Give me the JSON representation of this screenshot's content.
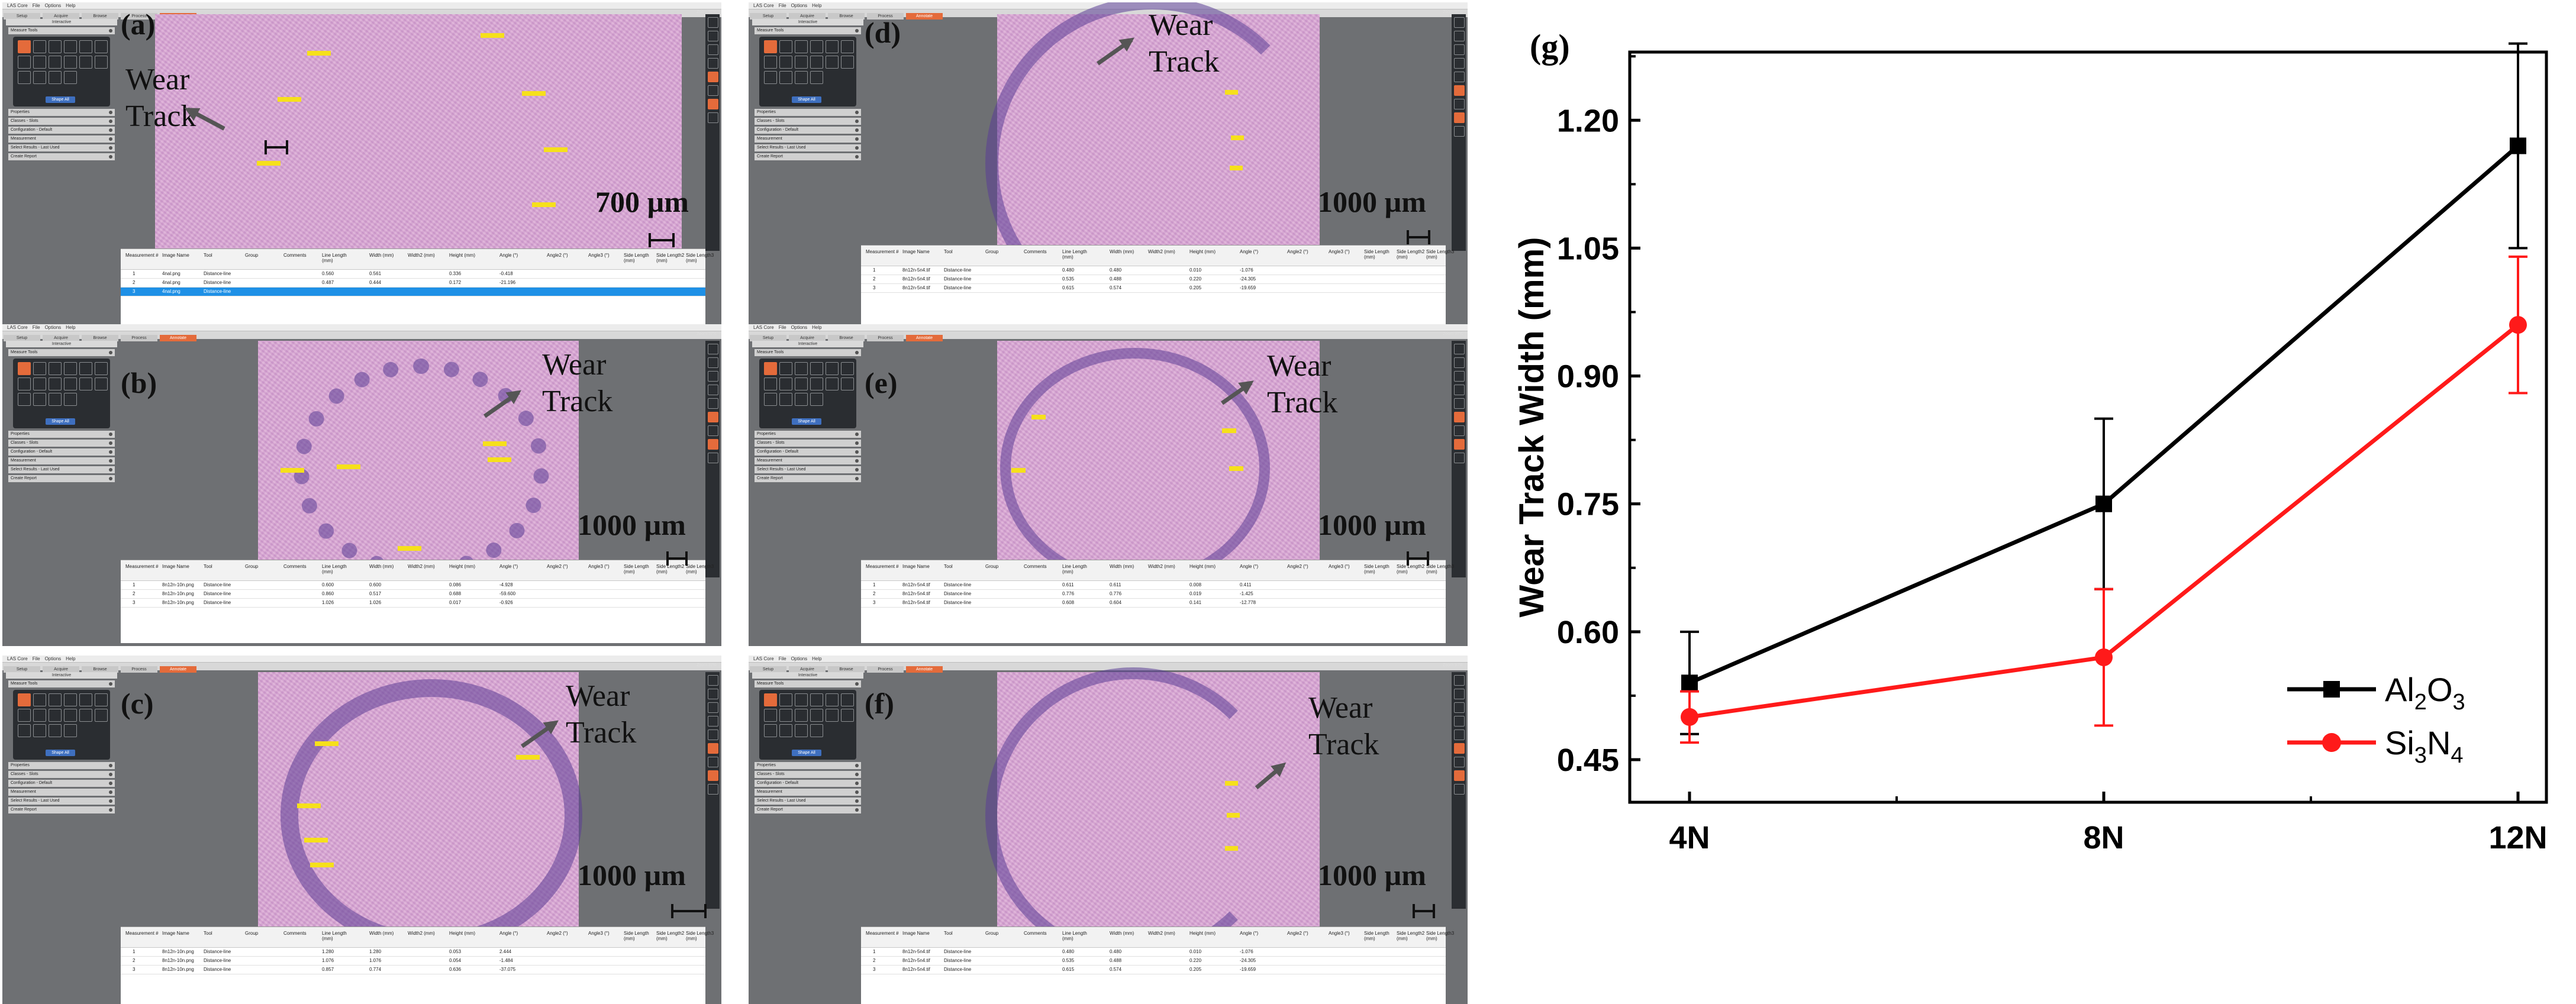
{
  "software": {
    "menu": [
      "LAS Core",
      "File",
      "Options",
      "Help"
    ],
    "tabs": [
      "Setup",
      "Acquire",
      "Browse",
      "Process",
      "Annotate"
    ],
    "active_tab": "Annotate",
    "zoom": "Zoom 37%",
    "left_panel": {
      "header": "Interactive",
      "tools_label": "Measure Tools",
      "shape_button": "Shape All",
      "rows": [
        "Properties",
        "Classes - Slots",
        "Configuration - Default",
        "Measurement",
        "Select Results - Last Used",
        "Create Report"
      ]
    },
    "table_headers": [
      "Measurement #",
      "Image Name",
      "Tool",
      "Group",
      "Comments",
      "Line Length (mm)",
      "Width (mm)",
      "Width2 (mm)",
      "Height (mm)",
      "Angle (°)",
      "Angle2 (°)",
      "Angle3 (°)",
      "Side Length (mm)",
      "Side Length2 (mm)",
      "Side Length3 (mm)"
    ]
  },
  "panels": [
    {
      "id": "a",
      "label": "(a)",
      "annotation": [
        "Wear",
        "Track"
      ],
      "scale_text": "700 µm",
      "rows": [
        {
          "n": "1",
          "image": "4nal.png",
          "tool": "Distance-line",
          "len": "0.560",
          "w": "0.561",
          "h": "0.336",
          "ang": "-0.418"
        },
        {
          "n": "2",
          "image": "4nal.png",
          "tool": "Distance-line",
          "len": "0.487",
          "w": "0.444",
          "h": "0.172",
          "ang": "-21.196"
        },
        {
          "n": "3",
          "image": "4nal.png",
          "tool": "Distance-line",
          "len": "",
          "w": "",
          "h": "",
          "ang": ""
        }
      ]
    },
    {
      "id": "b",
      "label": "(b)",
      "annotation": [
        "Wear",
        "Track"
      ],
      "scale_text": "1000 µm",
      "rows": [
        {
          "n": "1",
          "image": "8n12n-10n.png",
          "tool": "Distance-line",
          "len": "0.600",
          "w": "0.600",
          "h": "0.086",
          "ang": "-4.928"
        },
        {
          "n": "2",
          "image": "8n12n-10n.png",
          "tool": "Distance-line",
          "len": "0.860",
          "w": "0.517",
          "h": "0.688",
          "ang": "-59.600"
        },
        {
          "n": "3",
          "image": "8n12n-10n.png",
          "tool": "Distance-line",
          "len": "1.026",
          "w": "1.026",
          "h": "0.017",
          "ang": "-0.926"
        }
      ]
    },
    {
      "id": "c",
      "label": "(c)",
      "annotation": [
        "Wear",
        "Track"
      ],
      "scale_text": "1000 µm",
      "rows": [
        {
          "n": "1",
          "image": "8n12n-10n.png",
          "tool": "Distance-line",
          "len": "1.280",
          "w": "1.280",
          "h": "0.053",
          "ang": "2.444"
        },
        {
          "n": "2",
          "image": "8n12n-10n.png",
          "tool": "Distance-line",
          "len": "1.076",
          "w": "1.076",
          "h": "0.054",
          "ang": "-1.484"
        },
        {
          "n": "3",
          "image": "8n12n-10n.png",
          "tool": "Distance-line",
          "len": "0.857",
          "w": "0.774",
          "h": "0.636",
          "ang": "-37.075"
        }
      ]
    },
    {
      "id": "d",
      "label": "(d)",
      "annotation": [
        "Wear",
        "Track"
      ],
      "scale_text": "1000 µm",
      "rows": [
        {
          "n": "1",
          "image": "8n12n-5n4.tif",
          "tool": "Distance-line",
          "len": "0.480",
          "w": "0.480",
          "h": "0.010",
          "ang": "-1.076"
        },
        {
          "n": "2",
          "image": "8n12n-5n4.tif",
          "tool": "Distance-line",
          "len": "0.535",
          "w": "0.488",
          "h": "0.220",
          "ang": "-24.305"
        },
        {
          "n": "3",
          "image": "8n12n-5n4.tif",
          "tool": "Distance-line",
          "len": "0.615",
          "w": "0.574",
          "h": "0.205",
          "ang": "-19.659"
        }
      ]
    },
    {
      "id": "e",
      "label": "(e)",
      "annotation": [
        "Wear",
        "Track"
      ],
      "scale_text": "1000 µm",
      "rows": [
        {
          "n": "1",
          "image": "8n12n-5n4.tif",
          "tool": "Distance-line",
          "len": "0.611",
          "w": "0.611",
          "h": "0.008",
          "ang": "0.411"
        },
        {
          "n": "2",
          "image": "8n12n-5n4.tif",
          "tool": "Distance-line",
          "len": "0.776",
          "w": "0.776",
          "h": "0.019",
          "ang": "-1.425"
        },
        {
          "n": "3",
          "image": "8n12n-5n4.tif",
          "tool": "Distance-line",
          "len": "0.608",
          "w": "0.604",
          "h": "0.141",
          "ang": "-12.778"
        }
      ]
    },
    {
      "id": "f",
      "label": "(f)",
      "annotation": [
        "Wear",
        "Track"
      ],
      "scale_text": "1000 µm",
      "rows": [
        {
          "n": "1",
          "image": "8n12n-5n4.tif",
          "tool": "Distance-line",
          "len": "0.480",
          "w": "0.480",
          "h": "0.010",
          "ang": "-1.076"
        },
        {
          "n": "2",
          "image": "8n12n-5n4.tif",
          "tool": "Distance-line",
          "len": "0.535",
          "w": "0.488",
          "h": "0.220",
          "ang": "-24.305"
        },
        {
          "n": "3",
          "image": "8n12n-5n4.tif",
          "tool": "Distance-line",
          "len": "0.615",
          "w": "0.574",
          "h": "0.205",
          "ang": "-19.659"
        }
      ]
    }
  ],
  "chart_data": {
    "type": "line",
    "panel_label": "(g)",
    "title": "",
    "xlabel": "",
    "ylabel": "Wear Track Width (mm)",
    "categories": [
      "4N",
      "8N",
      "12N"
    ],
    "ylim": [
      0.4,
      1.28
    ],
    "yticks": [
      "0.45",
      "0.60",
      "0.75",
      "0.90",
      "1.05",
      "1.20"
    ],
    "legend_position": "bottom-right",
    "grid": false,
    "series": [
      {
        "name": "Al2O3",
        "name_base": "Al",
        "sub1": "2",
        "mid": "O",
        "sub2": "3",
        "color": "#000000",
        "marker": "square",
        "values": [
          0.54,
          0.75,
          1.17
        ],
        "err": [
          0.06,
          0.1,
          0.12
        ]
      },
      {
        "name": "Si3N4",
        "name_base": "Si",
        "sub1": "3",
        "mid": "N",
        "sub2": "4",
        "color": "#ff1a1a",
        "marker": "circle",
        "values": [
          0.5,
          0.57,
          0.96
        ],
        "err": [
          0.03,
          0.08,
          0.08
        ]
      }
    ]
  }
}
